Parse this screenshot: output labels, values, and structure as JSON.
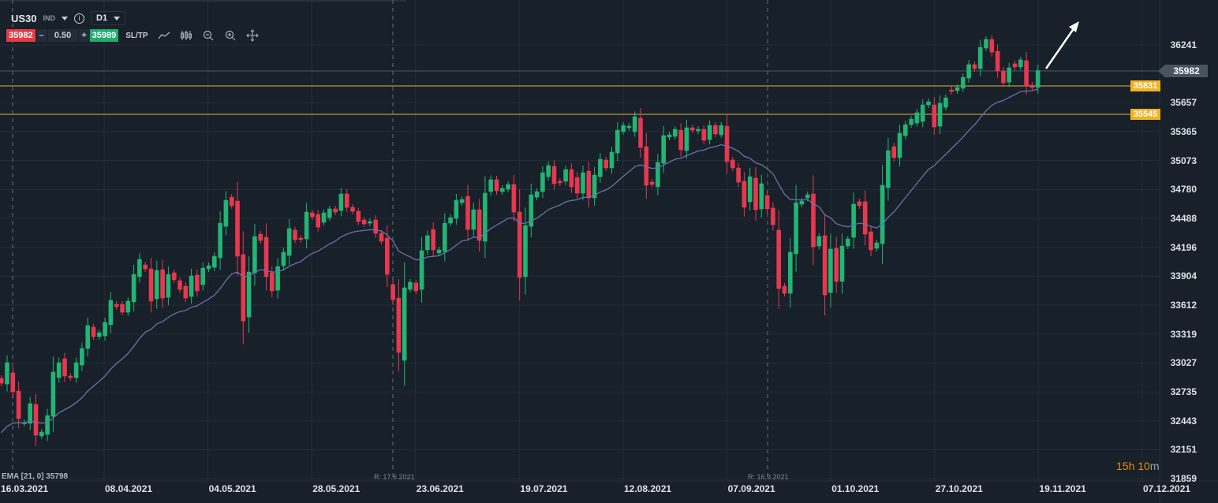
{
  "header": {
    "symbol": "US30",
    "type": "IND",
    "timeframe": "D1",
    "info_icon": "info-icon"
  },
  "trade": {
    "sell_price": "35982",
    "minus": "–",
    "lot": "0.50",
    "plus": "+",
    "buy_price": "35989",
    "sltp": "SL/TP"
  },
  "colors": {
    "background": "#18202a",
    "up": "#22b573",
    "down": "#e8384f",
    "ema": "#6b72a8",
    "level": "#b8973a",
    "accent": "#f0b323"
  },
  "indicator": {
    "label": "EMA [21, 0] 35798"
  },
  "rollovers": [
    {
      "label": "R: 17.6.2021"
    },
    {
      "label": "R: 16.9.2021"
    }
  ],
  "timer": {
    "main": "15h 10",
    "suffix": "m"
  },
  "chart_data": {
    "type": "candlestick",
    "symbol": "US30",
    "timeframe": "D1",
    "ylim": [
      31859,
      36600
    ],
    "y_ticks": [
      "36241",
      "35657",
      "35365",
      "35073",
      "34780",
      "34488",
      "34196",
      "33904",
      "33612",
      "33319",
      "33027",
      "32735",
      "32443",
      "32151",
      "31859"
    ],
    "x_ticks": [
      "16.03.2021",
      "08.04.2021",
      "04.05.2021",
      "28.05.2021",
      "23.06.2021",
      "19.07.2021",
      "12.08.2021",
      "07.09.2021",
      "01.10.2021",
      "27.10.2021",
      "19.11.2021",
      "07.12.2021"
    ],
    "current_price": "35982",
    "levels": [
      "35831",
      "35545"
    ],
    "ema_period": 21,
    "candles_oc": [
      [
        32871,
        32823
      ],
      [
        32815,
        33030
      ],
      [
        32927,
        32735
      ],
      [
        32743,
        32465
      ],
      [
        32417,
        32425
      ],
      [
        32417,
        32616
      ],
      [
        32608,
        32297
      ],
      [
        32289,
        32329
      ],
      [
        32305,
        32496
      ],
      [
        32488,
        32935
      ],
      [
        32879,
        33030
      ],
      [
        33070,
        32895
      ],
      [
        32895,
        32879
      ],
      [
        32879,
        33030
      ],
      [
        33006,
        33174
      ],
      [
        33174,
        33405
      ],
      [
        33389,
        33293
      ],
      [
        33293,
        33333
      ],
      [
        33301,
        33437
      ],
      [
        33413,
        33660
      ],
      [
        33620,
        33596
      ],
      [
        33620,
        33540
      ],
      [
        33540,
        33652
      ],
      [
        33644,
        33922
      ],
      [
        33899,
        34074
      ],
      [
        34018,
        33978
      ],
      [
        33978,
        33652
      ],
      [
        33675,
        33962
      ],
      [
        33970,
        33683
      ],
      [
        33691,
        33922
      ],
      [
        33938,
        33867
      ],
      [
        33859,
        33771
      ],
      [
        33803,
        33683
      ],
      [
        33699,
        33907
      ],
      [
        33915,
        33755
      ],
      [
        33819,
        33986
      ],
      [
        33978,
        34010
      ],
      [
        33994,
        34106
      ],
      [
        34090,
        34440
      ],
      [
        34408,
        34671
      ],
      [
        34703,
        34616
      ],
      [
        34663,
        34106
      ],
      [
        34122,
        33452
      ],
      [
        33492,
        33946
      ],
      [
        33938,
        34305
      ],
      [
        34329,
        34265
      ],
      [
        34297,
        33899
      ],
      [
        33938,
        33755
      ],
      [
        33763,
        34002
      ],
      [
        34010,
        34146
      ],
      [
        34114,
        34385
      ],
      [
        34369,
        34273
      ],
      [
        34289,
        34275
      ],
      [
        34281,
        34552
      ],
      [
        34544,
        34504
      ],
      [
        34528,
        34400
      ],
      [
        34448,
        34544
      ],
      [
        34496,
        34584
      ],
      [
        34584,
        34552
      ],
      [
        34568,
        34735
      ],
      [
        34735,
        34600
      ],
      [
        34600,
        34560
      ],
      [
        34560,
        34456
      ],
      [
        34472,
        34432
      ],
      [
        34440,
        34456
      ],
      [
        34472,
        34337
      ],
      [
        34337,
        34257
      ],
      [
        34289,
        33922
      ],
      [
        33819,
        33667
      ],
      [
        33683,
        33134
      ],
      [
        33054,
        33787
      ],
      [
        33771,
        33843
      ],
      [
        33835,
        33755
      ],
      [
        33771,
        34162
      ],
      [
        34170,
        34313
      ],
      [
        34377,
        34170
      ],
      [
        34138,
        34170
      ],
      [
        34154,
        34440
      ],
      [
        34440,
        34496
      ],
      [
        34488,
        34671
      ],
      [
        34647,
        34679
      ],
      [
        34711,
        34377
      ],
      [
        34377,
        34576
      ],
      [
        34576,
        34265
      ],
      [
        34257,
        34743
      ],
      [
        34759,
        34879
      ],
      [
        34879,
        34767
      ],
      [
        34759,
        34791
      ],
      [
        34783,
        34831
      ],
      [
        34831,
        34552
      ],
      [
        34552,
        33891
      ],
      [
        33899,
        34416
      ],
      [
        34408,
        34727
      ],
      [
        34703,
        34759
      ],
      [
        34759,
        34950
      ],
      [
        34910,
        35022
      ],
      [
        35014,
        34839
      ],
      [
        34863,
        34847
      ],
      [
        34863,
        34982
      ],
      [
        34982,
        34807
      ],
      [
        34902,
        34743
      ],
      [
        34743,
        34950
      ],
      [
        34966,
        34695
      ],
      [
        34695,
        34926
      ],
      [
        34910,
        35086
      ],
      [
        35078,
        34998
      ],
      [
        34998,
        35157
      ],
      [
        35149,
        35380
      ],
      [
        35365,
        35428
      ],
      [
        35404,
        35420
      ],
      [
        35365,
        35516
      ],
      [
        35500,
        35205
      ],
      [
        35213,
        34823
      ],
      [
        34855,
        34831
      ],
      [
        34807,
        35054
      ],
      [
        35046,
        35325
      ],
      [
        35309,
        35333
      ],
      [
        35317,
        35388
      ],
      [
        35380,
        35181
      ],
      [
        35173,
        35404
      ],
      [
        35404,
        35380
      ],
      [
        35372,
        35388
      ],
      [
        35388,
        35277
      ],
      [
        35285,
        35428
      ],
      [
        35428,
        35341
      ],
      [
        35333,
        35428
      ],
      [
        35420,
        35062
      ],
      [
        35078,
        34998
      ],
      [
        34998,
        34855
      ],
      [
        34863,
        34600
      ],
      [
        34656,
        34910
      ],
      [
        34895,
        34576
      ],
      [
        34584,
        34839
      ],
      [
        34719,
        34584
      ],
      [
        34592,
        34424
      ],
      [
        34369,
        33779
      ],
      [
        33803,
        33731
      ],
      [
        33731,
        34146
      ],
      [
        34130,
        34647
      ],
      [
        34632,
        34663
      ],
      [
        34695,
        34727
      ],
      [
        34735,
        34201
      ],
      [
        34209,
        34305
      ],
      [
        34313,
        33715
      ],
      [
        33739,
        34178
      ],
      [
        34186,
        33851
      ],
      [
        33851,
        34209
      ],
      [
        34209,
        34281
      ],
      [
        34297,
        34632
      ],
      [
        34656,
        34616
      ],
      [
        34656,
        34329
      ],
      [
        34353,
        34170
      ],
      [
        34186,
        34241
      ],
      [
        34233,
        34823
      ],
      [
        34799,
        35173
      ],
      [
        35213,
        35102
      ],
      [
        35102,
        35349
      ],
      [
        35325,
        35436
      ],
      [
        35436,
        35492
      ],
      [
        35452,
        35556
      ],
      [
        35468,
        35635
      ],
      [
        35635,
        35667
      ],
      [
        35635,
        35412
      ],
      [
        35420,
        35651
      ],
      [
        35611,
        35707
      ],
      [
        35787,
        35771
      ],
      [
        35779,
        35811
      ],
      [
        35803,
        35914
      ],
      [
        35906,
        36042
      ],
      [
        36042,
        36002
      ],
      [
        36002,
        36217
      ],
      [
        36209,
        36297
      ],
      [
        36297,
        36169
      ],
      [
        36177,
        35978
      ],
      [
        35978,
        35858
      ],
      [
        35866,
        36010
      ],
      [
        36050,
        36018
      ],
      [
        36018,
        36090
      ],
      [
        36082,
        35827
      ],
      [
        35835,
        35811
      ],
      [
        35811,
        35982
      ]
    ]
  }
}
